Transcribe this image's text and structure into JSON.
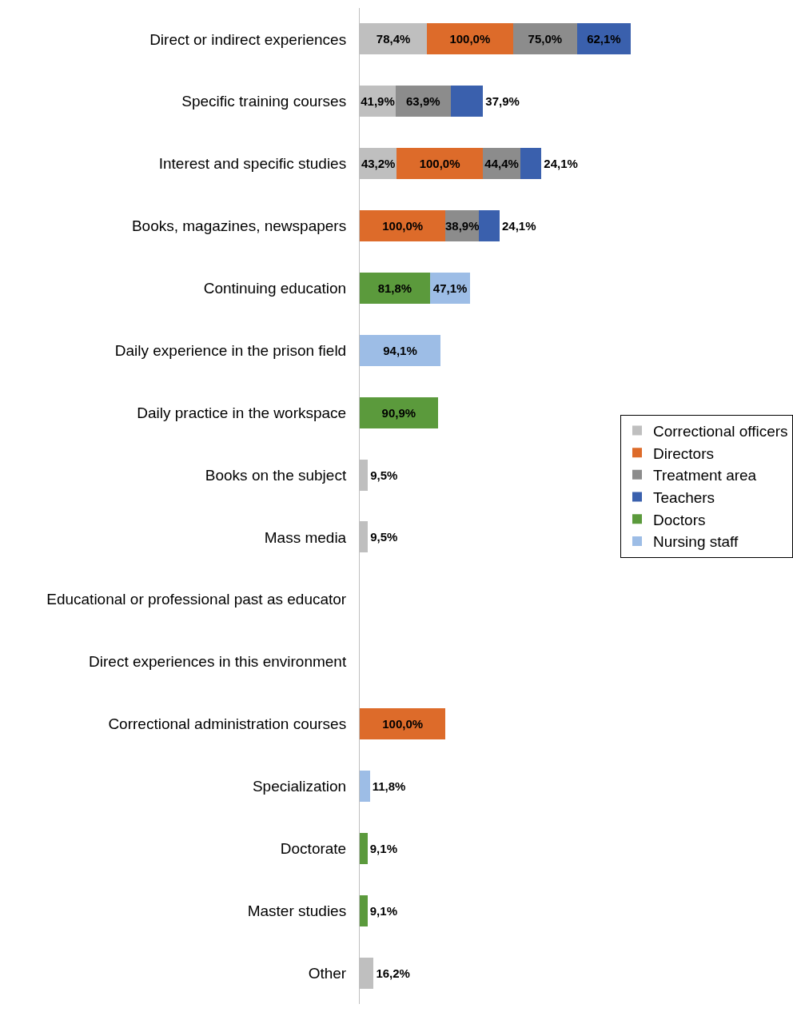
{
  "chart_data": {
    "type": "bar",
    "orientation": "horizontal",
    "stacked": true,
    "legend": "right",
    "categories": [
      "Direct or indirect experiences",
      "Specific training courses",
      "Interest and specific studies",
      "Books, magazines, newspapers",
      "Continuing education",
      "Daily experience in the prison field",
      "Daily practice in the workspace",
      "Books on the subject",
      "Mass media",
      "Educational or professional past as educator",
      "Direct experiences in this environment",
      "Correctional administration courses",
      "Specialization",
      "Doctorate",
      "Master studies",
      "Other"
    ],
    "series": [
      {
        "name": "Correctional officers",
        "color": "#bfbfbf",
        "values": [
          78.4,
          41.9,
          43.2,
          null,
          null,
          null,
          null,
          9.5,
          9.5,
          null,
          null,
          null,
          null,
          null,
          null,
          16.2
        ],
        "value_labels": [
          "78,4%",
          "41,9%",
          "43,2%",
          null,
          null,
          null,
          null,
          "9,5%",
          "9,5%",
          null,
          null,
          null,
          null,
          null,
          null,
          "16,2%"
        ]
      },
      {
        "name": "Directors",
        "color": "#dd6b2a",
        "values": [
          100.0,
          null,
          100.0,
          100.0,
          null,
          null,
          null,
          null,
          null,
          null,
          null,
          100.0,
          null,
          null,
          null,
          null
        ],
        "value_labels": [
          "100,0%",
          null,
          "100,0%",
          "100,0%",
          null,
          null,
          null,
          null,
          null,
          null,
          null,
          "100,0%",
          null,
          null,
          null,
          null
        ]
      },
      {
        "name": "Treatment area",
        "color": "#8c8c8c",
        "values": [
          75.0,
          63.9,
          44.4,
          38.9,
          null,
          null,
          null,
          null,
          null,
          null,
          null,
          null,
          null,
          null,
          null,
          null
        ],
        "value_labels": [
          "75,0%",
          "63,9%",
          "44,4%",
          "38,9%",
          null,
          null,
          null,
          null,
          null,
          null,
          null,
          null,
          null,
          null,
          null,
          null
        ]
      },
      {
        "name": "Teachers",
        "color": "#3a60ad",
        "values": [
          62.1,
          37.9,
          24.1,
          24.1,
          null,
          null,
          null,
          null,
          null,
          null,
          null,
          null,
          null,
          null,
          null,
          null
        ],
        "value_labels": [
          "62,1%",
          "37,9%",
          "24,1%",
          "24,1%",
          null,
          null,
          null,
          null,
          null,
          null,
          null,
          null,
          null,
          null,
          null,
          null
        ]
      },
      {
        "name": "Doctors",
        "color": "#5b9a3c",
        "values": [
          null,
          null,
          null,
          null,
          81.8,
          null,
          90.9,
          null,
          null,
          null,
          null,
          null,
          null,
          9.1,
          9.1,
          null
        ],
        "value_labels": [
          null,
          null,
          null,
          null,
          "81,8%",
          null,
          "90,9%",
          null,
          null,
          null,
          null,
          null,
          null,
          "9,1%",
          "9,1%",
          null
        ]
      },
      {
        "name": "Nursing staff",
        "color": "#9dbde6",
        "values": [
          null,
          null,
          null,
          null,
          47.1,
          94.1,
          null,
          null,
          null,
          null,
          null,
          null,
          11.8,
          null,
          null,
          null
        ],
        "value_labels": [
          null,
          null,
          null,
          null,
          "47,1%",
          "94,1%",
          null,
          null,
          null,
          null,
          null,
          null,
          "11,8%",
          null,
          null,
          null
        ]
      }
    ]
  }
}
